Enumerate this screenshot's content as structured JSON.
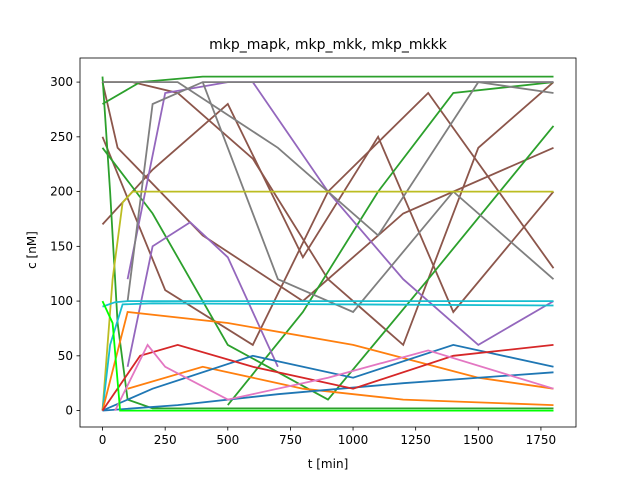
{
  "chart_data": {
    "type": "line",
    "title": "mkp_mapk, mkp_mkk, mkp_mkkk",
    "xlabel": "t [min]",
    "ylabel": "c [nM]",
    "xlim": [
      -90,
      1890
    ],
    "ylim": [
      -15,
      322
    ],
    "xticks": [
      0,
      250,
      500,
      750,
      1000,
      1250,
      1500,
      1750
    ],
    "yticks": [
      0,
      50,
      100,
      150,
      200,
      250,
      300
    ],
    "grid": false,
    "legend": "none",
    "series": [
      {
        "color": "#8c564b",
        "points": [
          [
            0,
            300
          ],
          [
            120,
            300
          ],
          [
            300,
            290
          ],
          [
            600,
            230
          ],
          [
            900,
            120
          ],
          [
            1200,
            60
          ],
          [
            1500,
            240
          ],
          [
            1800,
            300
          ]
        ]
      },
      {
        "color": "#8c564b",
        "points": [
          [
            0,
            170
          ],
          [
            200,
            220
          ],
          [
            500,
            280
          ],
          [
            800,
            140
          ],
          [
            1100,
            250
          ],
          [
            1400,
            90
          ],
          [
            1800,
            200
          ]
        ]
      },
      {
        "color": "#8c564b",
        "points": [
          [
            0,
            250
          ],
          [
            250,
            110
          ],
          [
            600,
            60
          ],
          [
            900,
            200
          ],
          [
            1300,
            290
          ],
          [
            1800,
            130
          ]
        ]
      },
      {
        "color": "#8c564b",
        "points": [
          [
            0,
            300
          ],
          [
            60,
            240
          ],
          [
            400,
            160
          ],
          [
            800,
            100
          ],
          [
            1200,
            180
          ],
          [
            1800,
            240
          ]
        ]
      },
      {
        "color": "#2ca02c",
        "points": [
          [
            0,
            305
          ],
          [
            30,
            200
          ],
          [
            60,
            80
          ],
          [
            100,
            10
          ],
          [
            200,
            2
          ],
          [
            1800,
            2
          ]
        ]
      },
      {
        "color": "#2ca02c",
        "points": [
          [
            0,
            280
          ],
          [
            150,
            300
          ],
          [
            400,
            305
          ],
          [
            1800,
            305
          ]
        ]
      },
      {
        "color": "#2ca02c",
        "points": [
          [
            0,
            240
          ],
          [
            200,
            180
          ],
          [
            500,
            60
          ],
          [
            900,
            10
          ],
          [
            1300,
            120
          ],
          [
            1800,
            260
          ]
        ]
      },
      {
        "color": "#2ca02c",
        "points": [
          [
            500,
            5
          ],
          [
            800,
            90
          ],
          [
            1100,
            200
          ],
          [
            1400,
            290
          ],
          [
            1800,
            300
          ]
        ]
      },
      {
        "color": "#9467bd",
        "points": [
          [
            100,
            40
          ],
          [
            200,
            150
          ],
          [
            350,
            172
          ],
          [
            500,
            140
          ],
          [
            600,
            90
          ],
          [
            700,
            40
          ]
        ]
      },
      {
        "color": "#9467bd",
        "points": [
          [
            100,
            120
          ],
          [
            250,
            290
          ],
          [
            500,
            300
          ],
          [
            900,
            300
          ],
          [
            1800,
            300
          ]
        ]
      },
      {
        "color": "#9467bd",
        "points": [
          [
            600,
            300
          ],
          [
            900,
            200
          ],
          [
            1200,
            120
          ],
          [
            1500,
            60
          ],
          [
            1800,
            100
          ]
        ]
      },
      {
        "color": "#7f7f7f",
        "points": [
          [
            100,
            100
          ],
          [
            200,
            280
          ],
          [
            400,
            300
          ],
          [
            1800,
            300
          ]
        ]
      },
      {
        "color": "#7f7f7f",
        "points": [
          [
            0,
            300
          ],
          [
            300,
            300
          ],
          [
            700,
            240
          ],
          [
            1100,
            160
          ],
          [
            1500,
            300
          ],
          [
            1800,
            290
          ]
        ]
      },
      {
        "color": "#7f7f7f",
        "points": [
          [
            400,
            300
          ],
          [
            700,
            120
          ],
          [
            1000,
            90
          ],
          [
            1400,
            200
          ],
          [
            1800,
            120
          ]
        ]
      },
      {
        "color": "#bcbd22",
        "points": [
          [
            0,
            0
          ],
          [
            40,
            120
          ],
          [
            80,
            190
          ],
          [
            120,
            200
          ],
          [
            1800,
            200
          ]
        ]
      },
      {
        "color": "#17becf",
        "points": [
          [
            0,
            95
          ],
          [
            50,
            99
          ],
          [
            100,
            100
          ],
          [
            1800,
            100
          ]
        ]
      },
      {
        "color": "#17becf",
        "points": [
          [
            0,
            0
          ],
          [
            30,
            60
          ],
          [
            80,
            97
          ],
          [
            200,
            98
          ],
          [
            1800,
            96
          ]
        ]
      },
      {
        "color": "#ff7f0e",
        "points": [
          [
            0,
            0
          ],
          [
            100,
            90
          ],
          [
            500,
            80
          ],
          [
            1000,
            60
          ],
          [
            1500,
            30
          ],
          [
            1800,
            20
          ]
        ]
      },
      {
        "color": "#ff7f0e",
        "points": [
          [
            100,
            20
          ],
          [
            400,
            40
          ],
          [
            800,
            20
          ],
          [
            1200,
            10
          ],
          [
            1800,
            5
          ]
        ]
      },
      {
        "color": "#1f77b4",
        "points": [
          [
            0,
            0
          ],
          [
            200,
            20
          ],
          [
            600,
            50
          ],
          [
            1000,
            30
          ],
          [
            1400,
            60
          ],
          [
            1800,
            40
          ]
        ]
      },
      {
        "color": "#1f77b4",
        "points": [
          [
            0,
            0
          ],
          [
            300,
            5
          ],
          [
            700,
            15
          ],
          [
            1200,
            25
          ],
          [
            1800,
            35
          ]
        ]
      },
      {
        "color": "#d62728",
        "points": [
          [
            0,
            0
          ],
          [
            150,
            50
          ],
          [
            300,
            60
          ],
          [
            600,
            40
          ],
          [
            1000,
            20
          ],
          [
            1400,
            50
          ],
          [
            1800,
            60
          ]
        ]
      },
      {
        "color": "#e377c2",
        "points": [
          [
            50,
            0
          ],
          [
            180,
            60
          ],
          [
            250,
            40
          ],
          [
            500,
            10
          ],
          [
            900,
            30
          ],
          [
            1300,
            55
          ],
          [
            1800,
            20
          ]
        ]
      },
      {
        "color": "#00ff00",
        "points": [
          [
            0,
            100
          ],
          [
            40,
            80
          ],
          [
            70,
            0
          ],
          [
            1800,
            0
          ]
        ]
      }
    ]
  }
}
